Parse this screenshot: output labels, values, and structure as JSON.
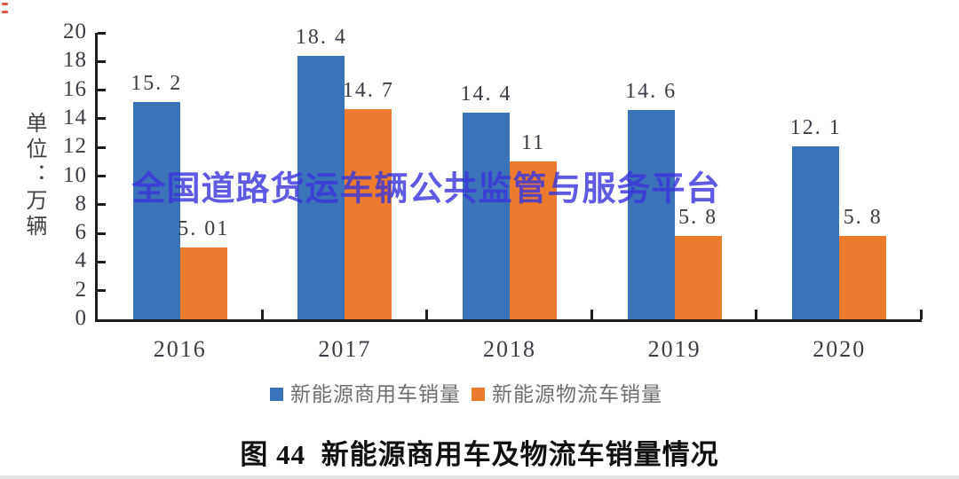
{
  "unit_label": "单位：万辆",
  "watermark": {
    "text": "全国道路货运车辆公共监管与服务平台",
    "color": "#3b36dc"
  },
  "caption": "图 44  新能源商用车及物流车销量情况",
  "axis_color": "#1d1d1d",
  "chart_data": {
    "type": "bar",
    "title": "图 44  新能源商用车及物流车销量情况",
    "categories": [
      "2016",
      "2017",
      "2018",
      "2019",
      "2020"
    ],
    "series": [
      {
        "name": "新能源商用车销量",
        "color": "#3b73b8",
        "values": [
          15.2,
          18.4,
          14.4,
          14.6,
          12.1
        ],
        "labels": [
          "15. 2",
          "18. 4",
          "14. 4",
          "14. 6",
          "12. 1"
        ]
      },
      {
        "name": "新能源物流车销量",
        "color": "#ec7c2d",
        "values": [
          5.01,
          14.7,
          11,
          5.8,
          5.8
        ],
        "labels": [
          "5. 01",
          "14. 7",
          "11",
          "5. 8",
          "5. 8"
        ]
      }
    ],
    "xlabel": "",
    "ylabel": "单位：万辆",
    "ylim": [
      0,
      20
    ],
    "ytick_step": 2,
    "grid": false,
    "legend_position": "bottom"
  }
}
